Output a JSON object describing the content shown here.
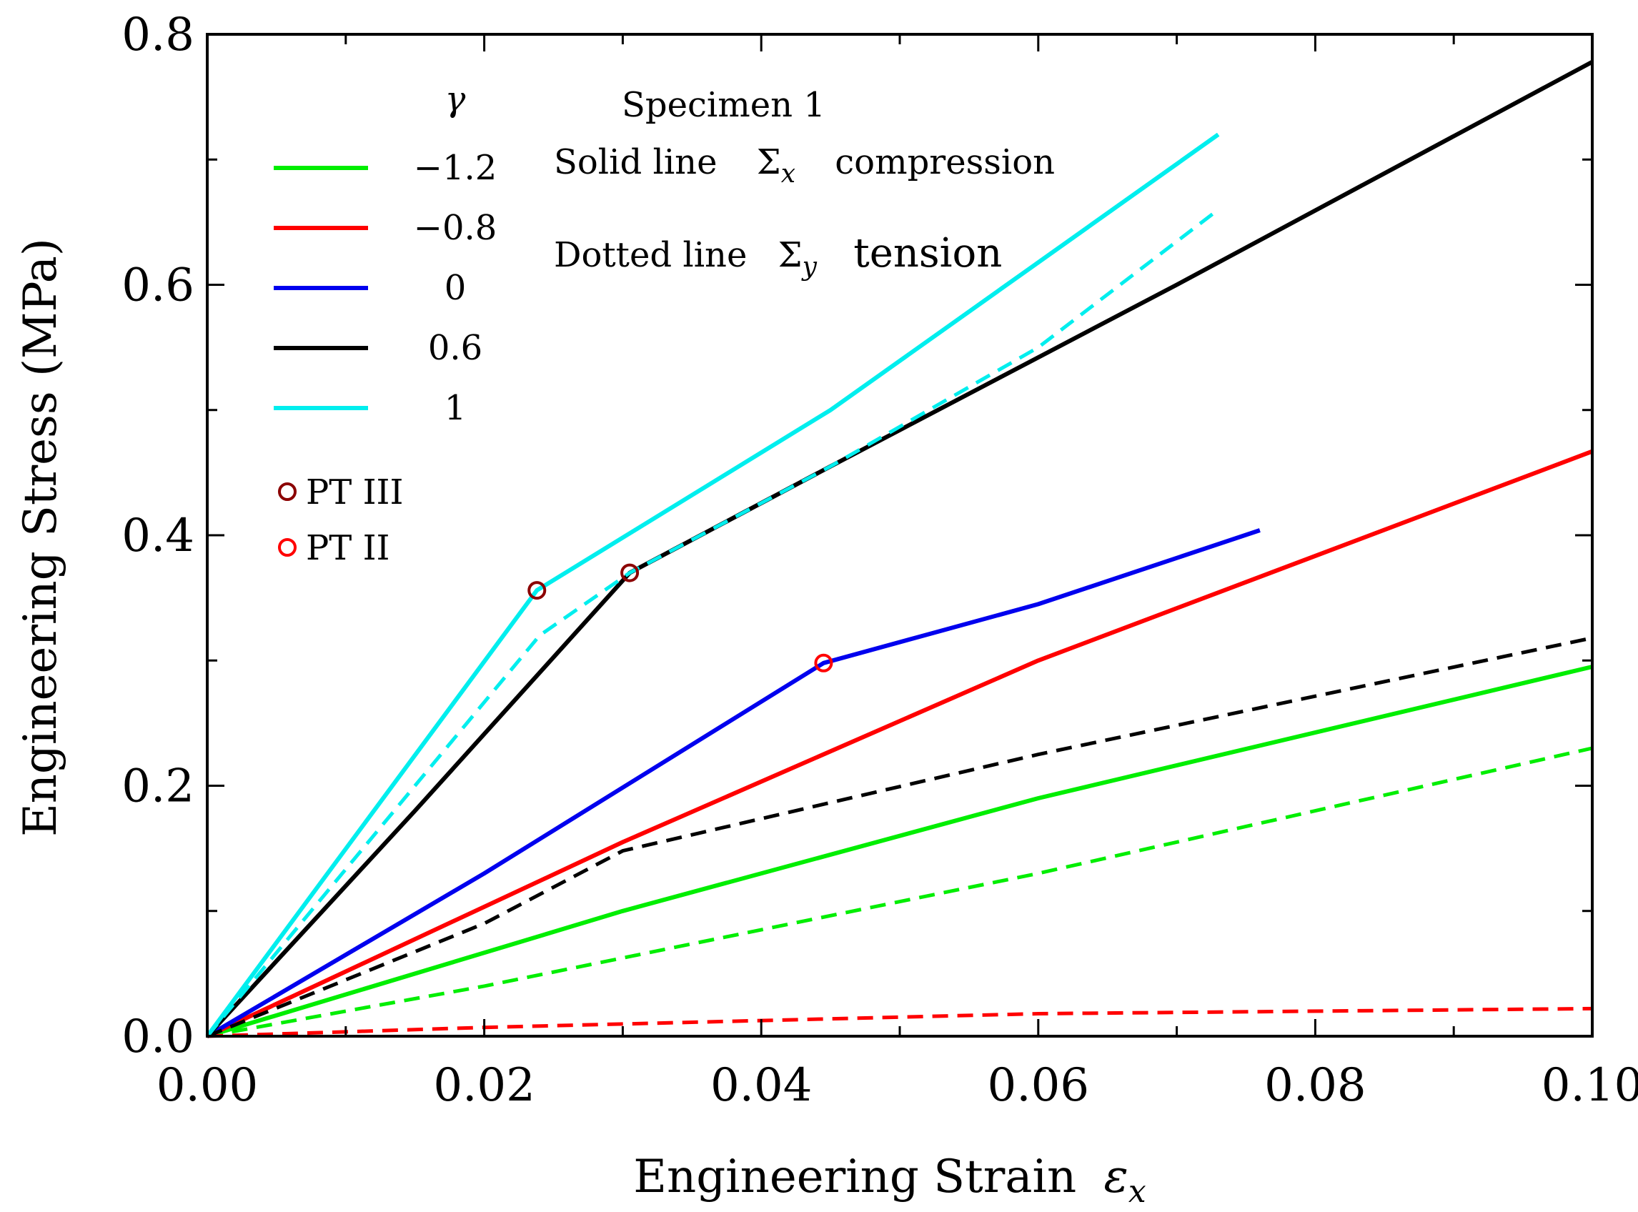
{
  "chart_data": {
    "type": "line",
    "title": "",
    "xlabel": "Engineering Strain",
    "xlabel_symbol": "ε",
    "xlabel_subscript": "x",
    "ylabel": "Engineering Stress (MPa)",
    "xlim": [
      0.0,
      0.1
    ],
    "ylim": [
      0.0,
      0.8
    ],
    "x_ticks": [
      0.0,
      0.02,
      0.04,
      0.06,
      0.08,
      0.1
    ],
    "x_tick_labels": [
      "0.00",
      "0.02",
      "0.04",
      "0.06",
      "0.08",
      "0.10"
    ],
    "y_ticks": [
      0.0,
      0.2,
      0.4,
      0.6,
      0.8
    ],
    "y_tick_labels": [
      "0.0",
      "0.2",
      "0.4",
      "0.6",
      "0.8"
    ],
    "grid": false,
    "legend": {
      "placement": "top-left",
      "header": "γ",
      "entries": [
        {
          "label": "−1.2",
          "color": "#00ee00"
        },
        {
          "label": "−0.8",
          "color": "#ff0000"
        },
        {
          "label": "0",
          "color": "#0000ee"
        },
        {
          "label": "0.6",
          "color": "#000000"
        },
        {
          "label": "1",
          "color": "#00eeee"
        }
      ],
      "markers": [
        {
          "label": "PT III",
          "color": "#8b0000"
        },
        {
          "label": "PT II",
          "color": "#ff0000"
        }
      ]
    },
    "annotations": {
      "specimen": "Specimen 1",
      "solid_prefix": "Solid line",
      "solid_symbol": "Σ",
      "solid_subscript": "x",
      "solid_suffix": "compression",
      "dotted_prefix": "Dotted line",
      "dotted_symbol": "Σ",
      "dotted_subscript": "y",
      "dotted_suffix": "tension"
    },
    "series": [
      {
        "name": "γ = -1.2 Σx compression",
        "style": "solid",
        "color": "#00ee00",
        "points": [
          [
            0,
            0
          ],
          [
            0.03,
            0.1
          ],
          [
            0.06,
            0.19
          ],
          [
            0.1,
            0.295
          ]
        ]
      },
      {
        "name": "γ = -1.2 Σy tension",
        "style": "dashed",
        "color": "#00ee00",
        "points": [
          [
            0,
            0
          ],
          [
            0.02,
            0.04
          ],
          [
            0.06,
            0.13
          ],
          [
            0.1,
            0.23
          ]
        ]
      },
      {
        "name": "γ = -0.8 Σx compression",
        "style": "solid",
        "color": "#ff0000",
        "points": [
          [
            0,
            0
          ],
          [
            0.03,
            0.155
          ],
          [
            0.06,
            0.3
          ],
          [
            0.1,
            0.467
          ]
        ]
      },
      {
        "name": "γ = -0.8 Σy tension",
        "style": "dashed",
        "color": "#ff0000",
        "points": [
          [
            0,
            0
          ],
          [
            0.02,
            0.007
          ],
          [
            0.06,
            0.018
          ],
          [
            0.1,
            0.022
          ]
        ]
      },
      {
        "name": "γ = 0 Σx compression",
        "style": "solid",
        "color": "#0000ee",
        "points": [
          [
            0,
            0
          ],
          [
            0.02,
            0.13
          ],
          [
            0.0445,
            0.298
          ],
          [
            0.06,
            0.345
          ],
          [
            0.076,
            0.404
          ]
        ]
      },
      {
        "name": "γ = 0.6 Σx compression",
        "style": "solid",
        "color": "#000000",
        "points": [
          [
            0,
            0
          ],
          [
            0.015,
            0.18
          ],
          [
            0.0305,
            0.37
          ],
          [
            0.045,
            0.455
          ],
          [
            0.07,
            0.6
          ],
          [
            0.1,
            0.778
          ]
        ]
      },
      {
        "name": "γ = 0.6 Σy tension",
        "style": "dashed",
        "color": "#000000",
        "points": [
          [
            0,
            0
          ],
          [
            0.02,
            0.09
          ],
          [
            0.03,
            0.148
          ],
          [
            0.06,
            0.225
          ],
          [
            0.1,
            0.318
          ]
        ]
      },
      {
        "name": "γ = 1 Σx compression",
        "style": "solid",
        "color": "#00eeee",
        "points": [
          [
            0,
            0
          ],
          [
            0.0238,
            0.356
          ],
          [
            0.045,
            0.5
          ],
          [
            0.073,
            0.72
          ]
        ]
      },
      {
        "name": "γ = 1 Σy tension",
        "style": "dashed",
        "color": "#00eeee",
        "points": [
          [
            0,
            0
          ],
          [
            0.024,
            0.32
          ],
          [
            0.0305,
            0.37
          ],
          [
            0.045,
            0.455
          ],
          [
            0.06,
            0.55
          ],
          [
            0.073,
            0.66
          ]
        ]
      }
    ],
    "markers": [
      {
        "label": "PT III",
        "x": 0.0238,
        "y": 0.356,
        "color": "#8b0000"
      },
      {
        "label": "PT III",
        "x": 0.0305,
        "y": 0.37,
        "color": "#8b0000"
      },
      {
        "label": "PT II",
        "x": 0.0445,
        "y": 0.298,
        "color": "#ff0000"
      }
    ]
  }
}
